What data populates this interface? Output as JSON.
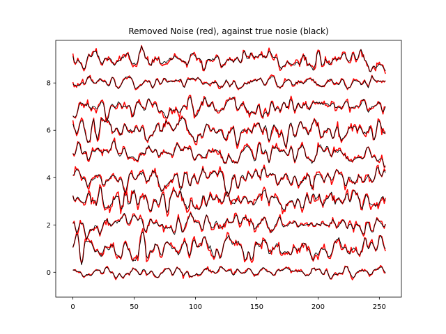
{
  "chart_data": {
    "type": "line",
    "title": "Removed Noise (red), against true nosie (black)",
    "xlabel": "",
    "ylabel": "",
    "xlim": [
      -14,
      268
    ],
    "ylim": [
      -1.05,
      9.8
    ],
    "xticks": [
      0,
      50,
      100,
      150,
      200,
      250
    ],
    "yticks": [
      0,
      2,
      4,
      6,
      8
    ],
    "n_points": 256,
    "grid": false,
    "legend": "none",
    "colors": {
      "removed": "#ff0000",
      "true": "#000000"
    },
    "channels": [
      {
        "offset": 0,
        "amplitude": 0.1
      },
      {
        "offset": 1,
        "amplitude": 0.25
      },
      {
        "offset": 2,
        "amplitude": 0.2
      },
      {
        "offset": 3,
        "amplitude": 0.25
      },
      {
        "offset": 4,
        "amplitude": 0.2
      },
      {
        "offset": 5,
        "amplitude": 0.18
      },
      {
        "offset": 6,
        "amplitude": 0.22
      },
      {
        "offset": 7,
        "amplitude": 0.2
      },
      {
        "offset": 8,
        "amplitude": 0.12
      },
      {
        "offset": 9,
        "amplitude": 0.2
      }
    ]
  }
}
